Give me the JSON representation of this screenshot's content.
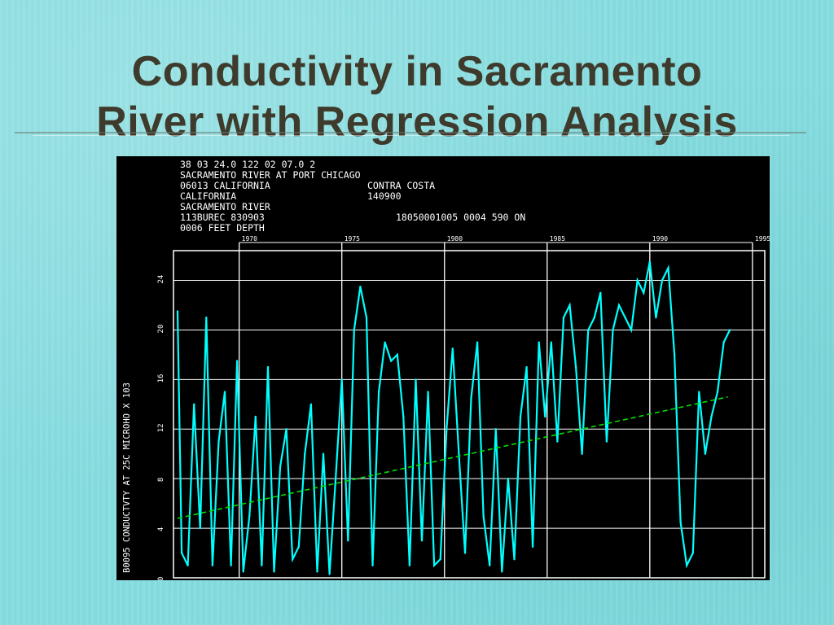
{
  "slide": {
    "title_line1": "Conductivity in Sacramento",
    "title_line2": "River with Regression Analysis"
  },
  "chart_data": {
    "type": "line",
    "header_lines": [
      "38 03 24.0 122 02 07.0 2",
      "SACRAMENTO RIVER AT PORT CHICAGO",
      "06013   CALIFORNIA",
      "CONTRA COSTA",
      "CALIFORNIA",
      "140900",
      "SACRAMENTO RIVER",
      "113BUREC  830903",
      "18050001005 0004 590 ON",
      "0006 FEET DEPTH"
    ],
    "ylabel": "B0095   CONDUCTVTY   AT 25C   MICROHO X 103",
    "x_ticks": [
      "1970",
      "1975",
      "1980",
      "1985",
      "1990",
      "1995"
    ],
    "y_ticks": [
      "0",
      "4",
      "8",
      "12",
      "16",
      "20",
      "24"
    ],
    "xlim": [
      1966.8,
      1995.6
    ],
    "ylim": [
      0,
      26.4
    ],
    "grid": true,
    "colors": {
      "series": "#00ffff",
      "regression": "#00e000",
      "grid": "#ffffff",
      "text": "#ffffff",
      "background": "#000000"
    },
    "series": [
      {
        "x": [
          1967.0,
          1967.2,
          1967.5,
          1967.8,
          1968.1,
          1968.4,
          1968.7,
          1969.0,
          1969.3,
          1969.6,
          1969.9,
          1970.2,
          1970.5,
          1970.8,
          1971.1,
          1971.4,
          1971.7,
          1972.0,
          1972.3,
          1972.6,
          1972.9,
          1973.2,
          1973.5,
          1973.8,
          1974.1,
          1974.4,
          1974.7,
          1975.0,
          1975.3,
          1975.6,
          1975.9,
          1976.2,
          1976.5,
          1976.8,
          1977.1,
          1977.4,
          1977.7,
          1978.0,
          1978.3,
          1978.6,
          1978.9,
          1979.2,
          1979.5,
          1979.8,
          1980.1,
          1980.4,
          1980.7,
          1981.0,
          1981.3,
          1981.6,
          1981.9,
          1982.2,
          1982.5,
          1982.8,
          1983.1,
          1983.4,
          1983.7,
          1984.0,
          1984.3,
          1984.6,
          1984.9,
          1985.2,
          1985.5,
          1985.8,
          1986.1,
          1986.4,
          1986.7,
          1987.0,
          1987.3,
          1987.6,
          1987.9,
          1988.2,
          1988.5,
          1988.8,
          1989.1,
          1989.4,
          1989.7,
          1990.0,
          1990.3,
          1990.6,
          1990.9,
          1991.2,
          1991.5,
          1991.8,
          1992.1,
          1992.4,
          1992.7,
          1993.0,
          1993.3,
          1993.6,
          1993.9
        ],
        "y": [
          21.5,
          2.0,
          1.0,
          14.0,
          4.0,
          21.0,
          1.0,
          11.0,
          15.0,
          1.0,
          17.5,
          0.5,
          5.0,
          13.0,
          1.0,
          17.0,
          0.5,
          9.0,
          12.0,
          1.5,
          2.5,
          10.0,
          14.0,
          0.5,
          10.0,
          0.3,
          8.0,
          16.0,
          3.0,
          20.0,
          23.5,
          21.0,
          1.0,
          15.0,
          19.0,
          17.5,
          18.0,
          13.0,
          1.0,
          16.0,
          3.0,
          15.0,
          1.0,
          1.5,
          12.0,
          18.5,
          10.0,
          2.0,
          14.5,
          19.0,
          5.0,
          1.0,
          12.0,
          0.5,
          8.0,
          1.5,
          13.0,
          17.0,
          2.5,
          19.0,
          13.0,
          19.0,
          11.0,
          21.0,
          22.0,
          17.0,
          10.0,
          20.0,
          21.0,
          23.0,
          11.0,
          20.0,
          22.0,
          21.0,
          20.0,
          24.0,
          23.0,
          25.5,
          21.0,
          24.0,
          25.0,
          18.0,
          4.5,
          1.0,
          2.0,
          15.0,
          10.0,
          13.0,
          15.0,
          19.0,
          20.0
        ]
      }
    ],
    "regression": {
      "x": [
        1967.0,
        1993.8
      ],
      "y": [
        4.8,
        14.6
      ]
    }
  }
}
